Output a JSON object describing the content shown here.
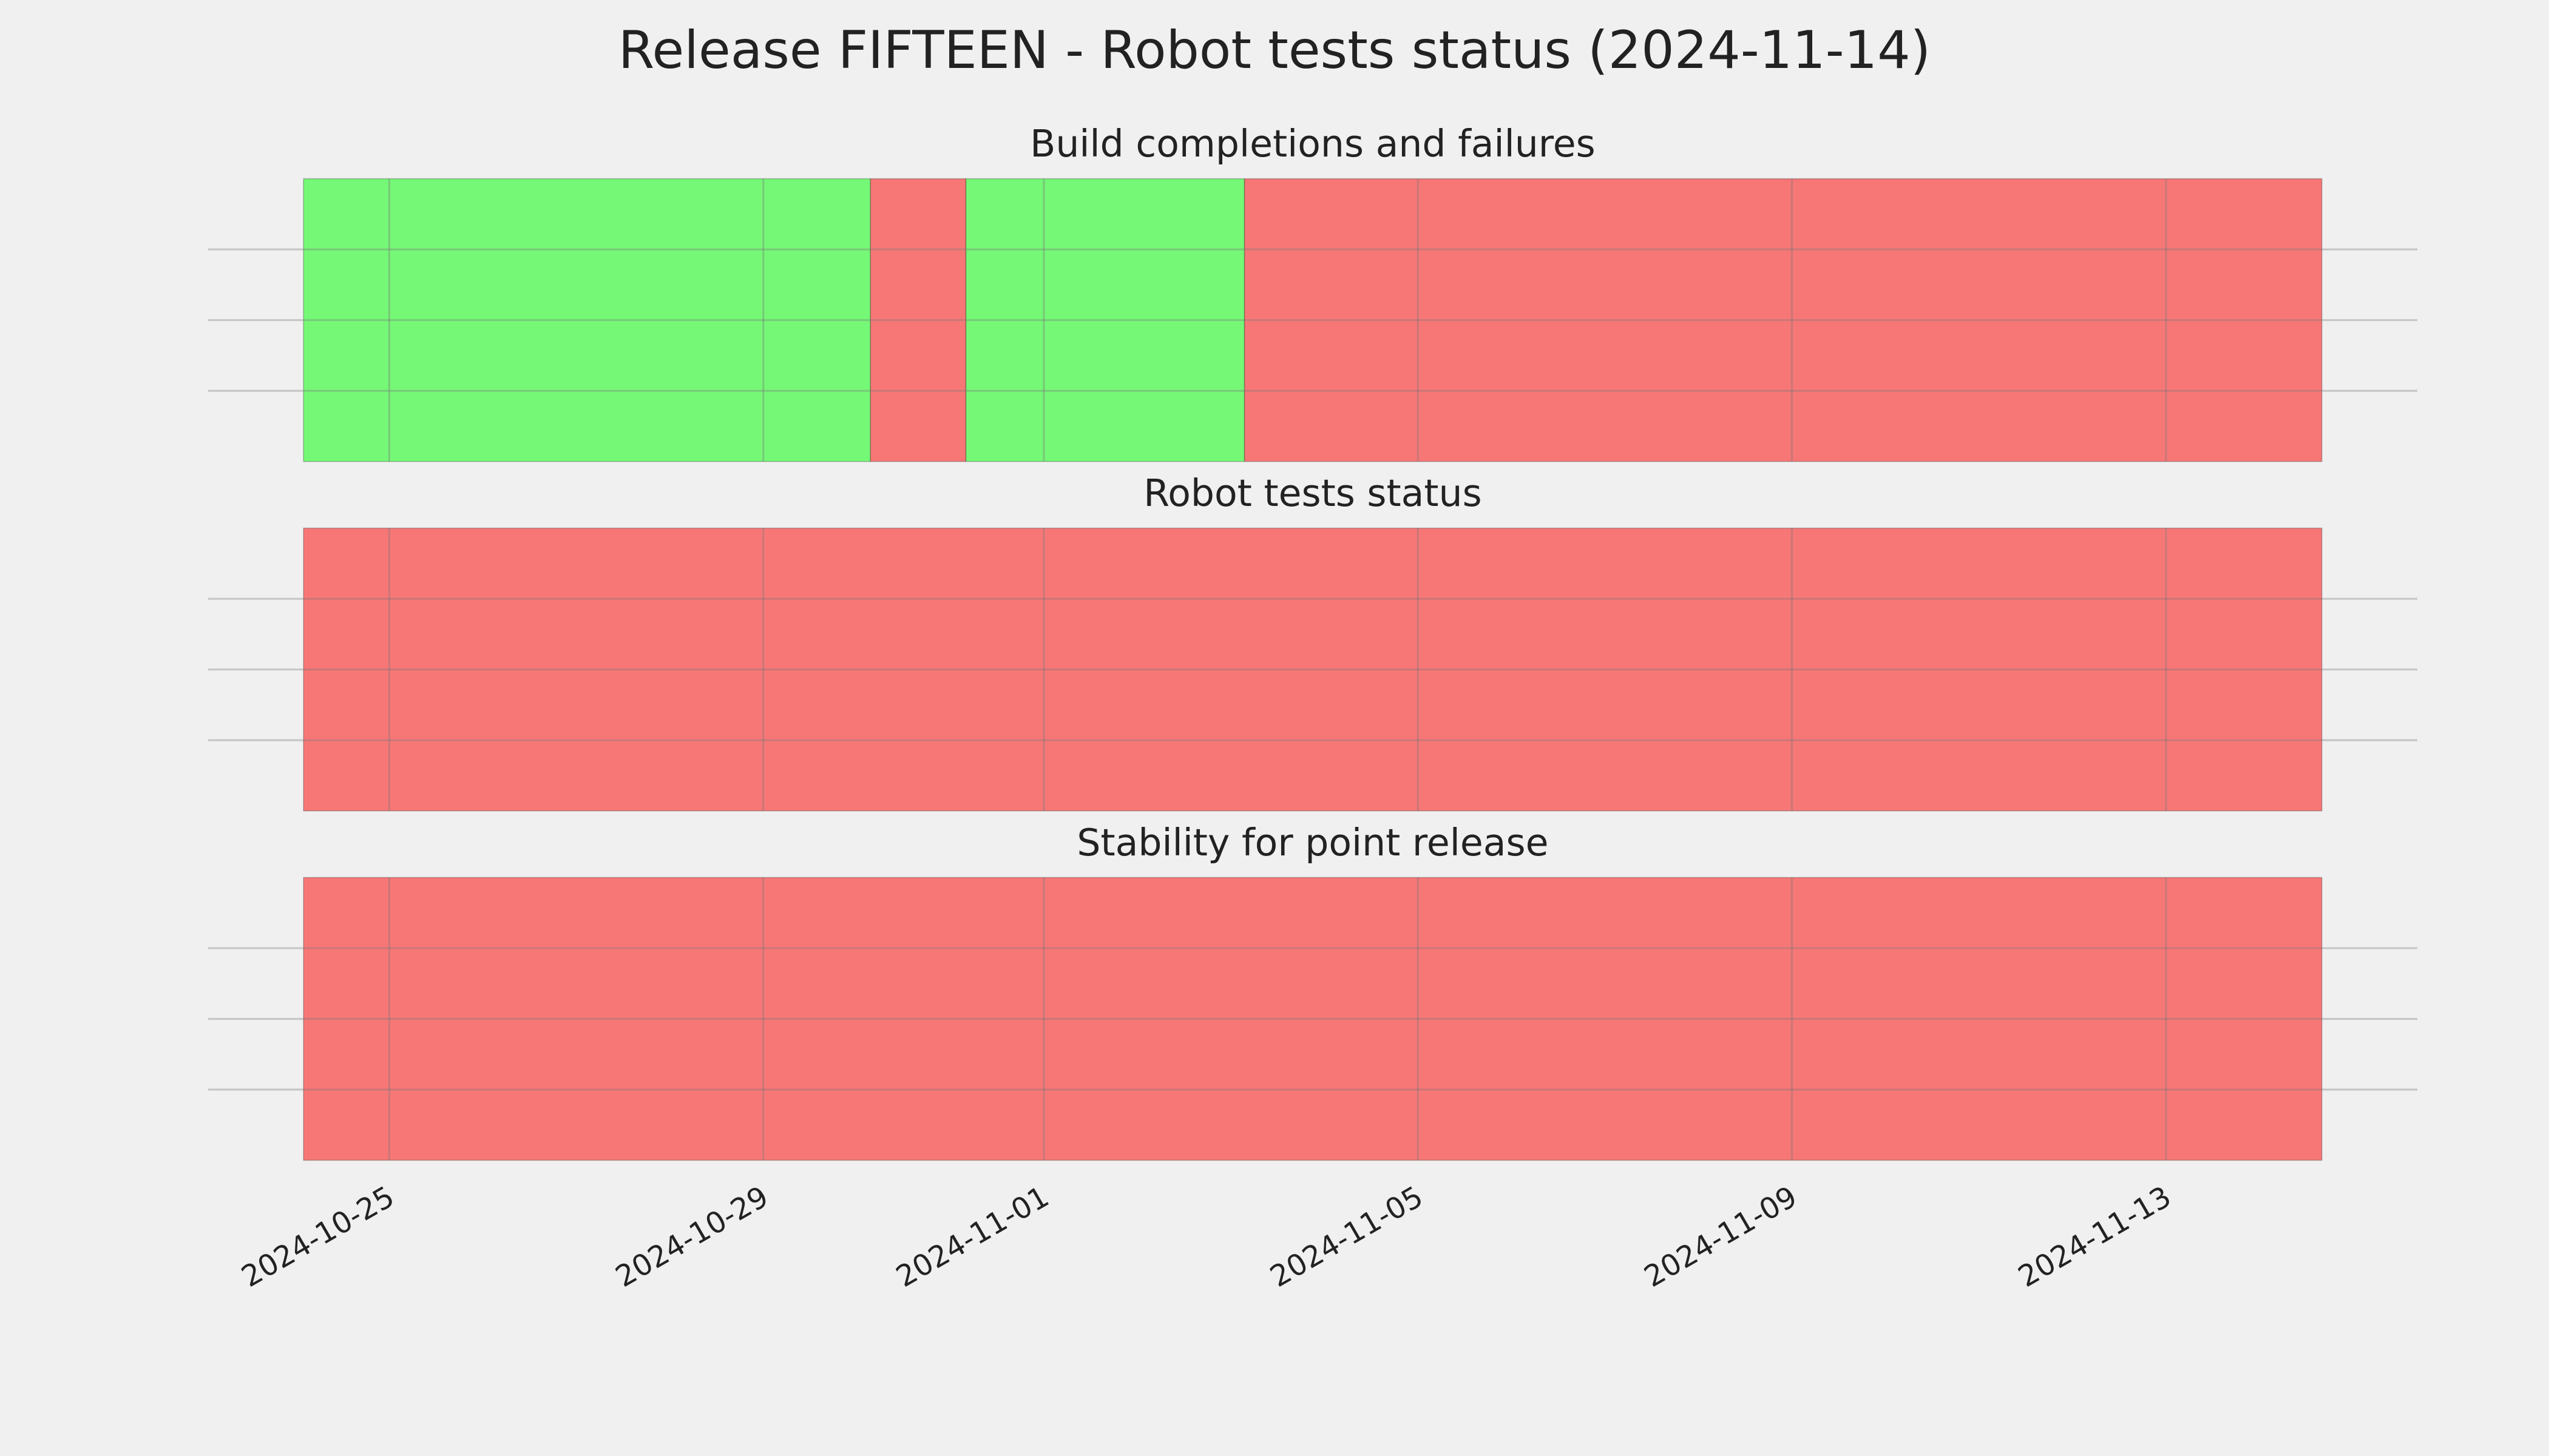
{
  "title": "Release FIFTEEN - Robot tests status (2024-11-14)",
  "chart_data": [
    {
      "type": "span",
      "title": "Build completions and failures",
      "xlim": [
        "2024-10-23T01:30",
        "2024-11-15T16:30"
      ],
      "xticks": [
        "2024-10-25",
        "2024-10-29",
        "2024-11-01",
        "2024-11-05",
        "2024-11-09",
        "2024-11-13"
      ],
      "ylim": [
        0,
        1
      ],
      "yticks": [
        0.25,
        0.5,
        0.75
      ],
      "grid": true,
      "show_xtick_labels": false,
      "segments": [
        {
          "start": "2024-10-24T02:00",
          "end": "2024-10-30T03:30",
          "color": "#76f877"
        },
        {
          "start": "2024-10-30T03:30",
          "end": "2024-10-31T04:00",
          "color": "#f77777"
        },
        {
          "start": "2024-10-31T04:00",
          "end": "2024-11-03T03:30",
          "color": "#76f877"
        },
        {
          "start": "2024-11-03T03:30",
          "end": "2024-11-14T16:00",
          "color": "#f77777"
        }
      ]
    },
    {
      "type": "span",
      "title": "Robot tests status",
      "xlim": [
        "2024-10-23T01:30",
        "2024-11-15T16:30"
      ],
      "xticks": [
        "2024-10-25",
        "2024-10-29",
        "2024-11-01",
        "2024-11-05",
        "2024-11-09",
        "2024-11-13"
      ],
      "ylim": [
        0,
        1
      ],
      "yticks": [
        0.25,
        0.5,
        0.75
      ],
      "grid": true,
      "show_xtick_labels": false,
      "segments": [
        {
          "start": "2024-10-24T02:00",
          "end": "2024-11-14T16:00",
          "color": "#f77777"
        }
      ]
    },
    {
      "type": "span",
      "title": "Stability for point release",
      "xlim": [
        "2024-10-23T01:30",
        "2024-11-15T16:30"
      ],
      "xticks": [
        "2024-10-25",
        "2024-10-29",
        "2024-11-01",
        "2024-11-05",
        "2024-11-09",
        "2024-11-13"
      ],
      "ylim": [
        0,
        1
      ],
      "yticks": [
        0.25,
        0.5,
        0.75
      ],
      "grid": true,
      "show_xtick_labels": true,
      "segments": [
        {
          "start": "2024-10-24T02:00",
          "end": "2024-11-14T16:00",
          "color": "#f77777"
        }
      ]
    }
  ]
}
